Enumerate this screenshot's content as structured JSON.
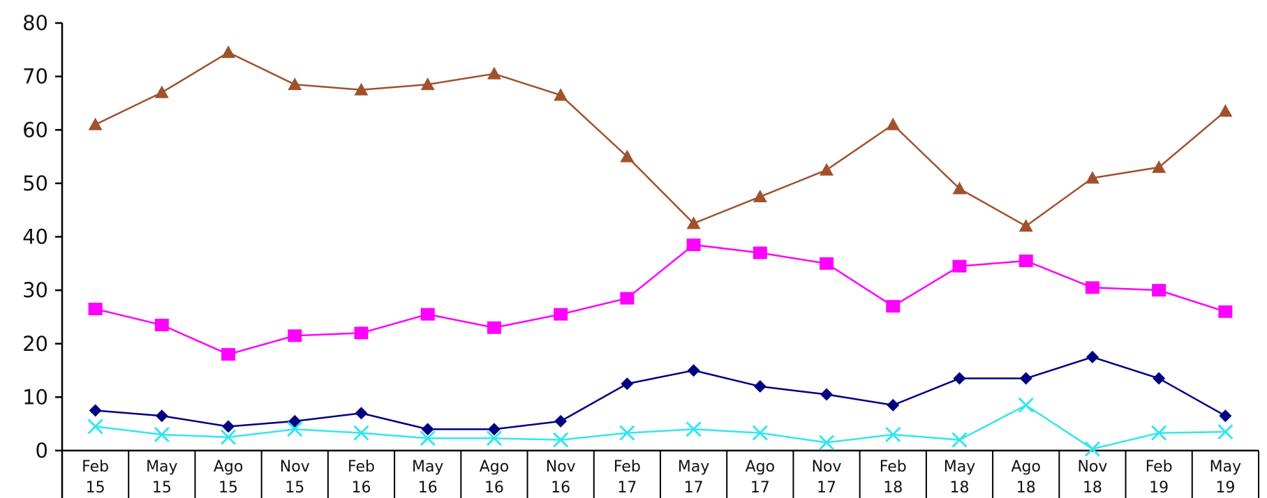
{
  "chart_data": {
    "type": "line",
    "title": "",
    "xlabel": "",
    "ylabel": "",
    "ylim": [
      0,
      80
    ],
    "yticks": [
      0,
      10,
      20,
      30,
      40,
      50,
      60,
      70,
      80
    ],
    "grid": false,
    "legend": "none",
    "categories": [
      [
        "Feb",
        "15"
      ],
      [
        "May",
        "15"
      ],
      [
        "Ago",
        "15"
      ],
      [
        "Nov",
        "15"
      ],
      [
        "Feb",
        "16"
      ],
      [
        "May",
        "16"
      ],
      [
        "Ago",
        "16"
      ],
      [
        "Nov",
        "16"
      ],
      [
        "Feb",
        "17"
      ],
      [
        "May",
        "17"
      ],
      [
        "Ago",
        "17"
      ],
      [
        "Nov",
        "17"
      ],
      [
        "Feb",
        "18"
      ],
      [
        "May",
        "18"
      ],
      [
        "Ago",
        "18"
      ],
      [
        "Nov",
        "18"
      ],
      [
        "Feb",
        "19"
      ],
      [
        "May",
        "19"
      ]
    ],
    "series": [
      {
        "color": "#a0522d",
        "marker": "triangle",
        "values": [
          61,
          67,
          74.5,
          68.5,
          67.5,
          68.5,
          70.5,
          66.5,
          55,
          42.5,
          47.5,
          52.5,
          61,
          49,
          42,
          51,
          53,
          63.5
        ]
      },
      {
        "color": "#ff00ff",
        "marker": "square",
        "values": [
          26.5,
          23.5,
          18,
          21.5,
          22,
          25.5,
          23,
          25.5,
          28.5,
          38.5,
          37,
          35,
          27,
          34.5,
          35.5,
          30.5,
          30,
          26
        ]
      },
      {
        "color": "#000080",
        "marker": "diamond",
        "values": [
          7.5,
          6.5,
          4.5,
          5.5,
          7,
          4,
          4,
          5.5,
          12.5,
          15,
          12,
          10.5,
          8.5,
          13.5,
          13.5,
          17.5,
          13.5,
          6.5
        ]
      },
      {
        "color": "#33e6ee",
        "marker": "x",
        "values": [
          4.5,
          3,
          2.5,
          4,
          3.3,
          2.3,
          2.3,
          2,
          3.3,
          4,
          3.3,
          1.5,
          3,
          2,
          8.5,
          0.3,
          3.3,
          3.5
        ]
      }
    ]
  }
}
